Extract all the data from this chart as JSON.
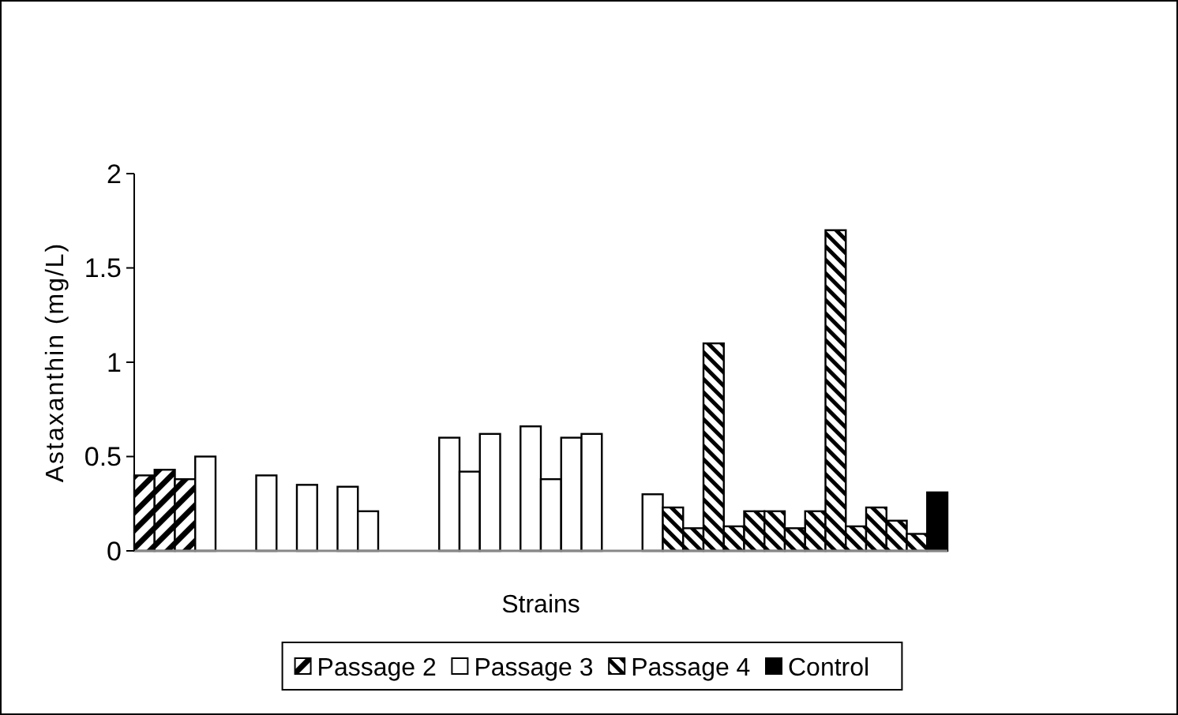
{
  "chart_data": {
    "type": "bar",
    "xlabel": "Strains",
    "ylabel": "Astaxanthin (mg/L)",
    "categories": [
      null,
      null,
      null,
      null,
      null,
      null,
      null,
      null,
      null,
      null,
      null,
      null,
      null,
      null,
      null,
      null,
      null,
      null,
      null,
      null,
      null,
      null,
      null,
      null,
      null,
      null,
      null,
      null,
      null,
      null,
      null,
      null,
      null,
      null,
      null,
      null,
      null,
      null,
      null,
      null
    ],
    "series": [
      {
        "name": "Passage 2",
        "color": "#000000",
        "values": [
          0.4,
          0.43,
          0.38,
          null,
          null,
          null,
          null,
          null,
          null,
          null,
          null,
          null,
          null,
          null,
          null,
          null,
          null,
          null,
          null,
          null,
          null,
          null,
          null,
          null,
          null,
          null,
          null,
          null,
          null,
          null,
          null,
          null,
          null,
          null,
          null,
          null,
          null,
          null,
          null,
          null
        ]
      },
      {
        "name": "Passage 3",
        "color": "#ffffff",
        "values": [
          null,
          null,
          null,
          0.5,
          null,
          null,
          0.4,
          null,
          0.35,
          null,
          0.34,
          0.21,
          null,
          null,
          null,
          0.6,
          0.42,
          0.62,
          null,
          0.66,
          0.38,
          0.6,
          0.62,
          null,
          null,
          0.3,
          null,
          null,
          null,
          null,
          null,
          null,
          null,
          null,
          null,
          null,
          null,
          null,
          null,
          null
        ]
      },
      {
        "name": "Passage 4",
        "color": "#000000",
        "values": [
          null,
          null,
          null,
          null,
          null,
          null,
          null,
          null,
          null,
          null,
          null,
          null,
          null,
          null,
          null,
          null,
          null,
          null,
          null,
          null,
          null,
          null,
          null,
          null,
          null,
          null,
          0.23,
          0.12,
          1.1,
          0.13,
          0.21,
          0.21,
          0.12,
          0.21,
          1.7,
          0.13,
          0.23,
          0.16,
          0.09,
          null
        ]
      },
      {
        "name": "Control",
        "color": "#000000",
        "values": [
          null,
          null,
          null,
          null,
          null,
          null,
          null,
          null,
          null,
          null,
          null,
          null,
          null,
          null,
          null,
          null,
          null,
          null,
          null,
          null,
          null,
          null,
          null,
          null,
          null,
          null,
          null,
          null,
          null,
          null,
          null,
          null,
          null,
          null,
          null,
          null,
          null,
          null,
          null,
          0.31
        ]
      }
    ],
    "ylim": [
      0,
      2
    ],
    "yticks": [
      0,
      0.5,
      1,
      1.5,
      2
    ],
    "grid": false,
    "legend": "bottom"
  }
}
